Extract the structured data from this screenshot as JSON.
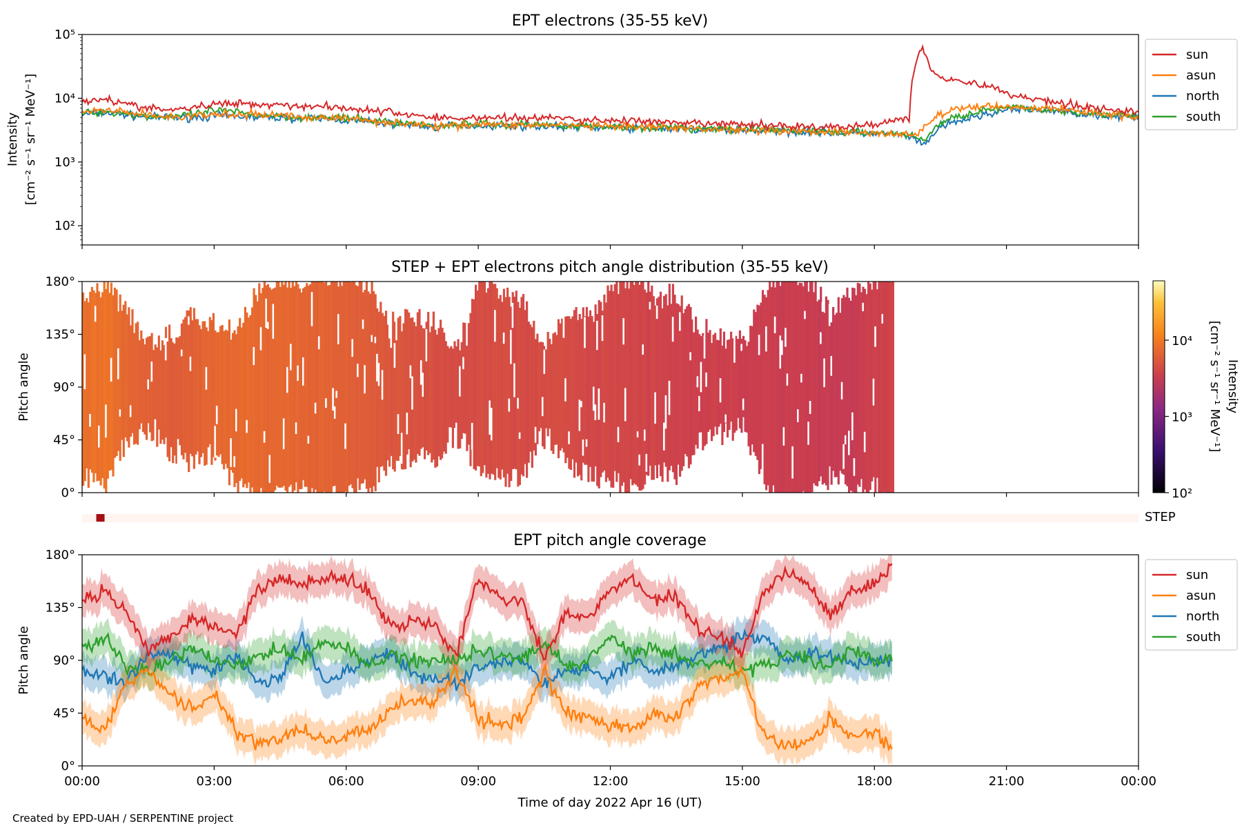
{
  "credit": "Created by EPD-UAH / SERPENTINE project",
  "colors": {
    "sun": "#d62728",
    "asun": "#ff7f0e",
    "north": "#1f77b4",
    "south": "#2ca02c"
  },
  "chart_data": [
    {
      "type": "line",
      "title": "EPT electrons (35-55 keV)",
      "ylabel_line1": "Intensity",
      "ylabel_line2": "[cm⁻² s⁻¹ sr⁻¹ MeV⁻¹]",
      "yscale": "log",
      "ylim": [
        50,
        100000
      ],
      "xlim_hours": [
        0,
        24
      ],
      "ytick_values": [
        100,
        1000,
        10000,
        100000
      ],
      "ytick_labels": [
        "10²",
        "10³",
        "10⁴",
        "10⁵"
      ],
      "legend_placement": "upper-right outside",
      "x_hours": [
        0.0,
        0.5,
        1.0,
        1.5,
        2.0,
        2.5,
        3.0,
        3.5,
        4.0,
        4.5,
        5.0,
        5.5,
        6.0,
        6.5,
        7.0,
        7.5,
        8.0,
        8.5,
        9.0,
        9.5,
        10.0,
        10.5,
        11.0,
        11.5,
        12.0,
        12.5,
        13.0,
        13.5,
        14.0,
        14.5,
        15.0,
        15.5,
        16.0,
        16.5,
        17.0,
        17.5,
        18.0,
        18.5,
        18.8,
        19.0,
        19.1,
        19.2,
        19.3,
        19.5,
        20.0,
        20.5,
        21.0,
        21.5,
        22.0,
        22.5,
        23.0,
        23.5,
        24.0
      ],
      "series": [
        {
          "name": "sun",
          "values": [
            9000,
            10000,
            8000,
            7000,
            6500,
            7000,
            8000,
            8500,
            8000,
            8000,
            7500,
            7500,
            7000,
            6500,
            6000,
            5500,
            5000,
            4800,
            5000,
            5000,
            4800,
            5000,
            4800,
            4500,
            4500,
            4500,
            4200,
            4000,
            4000,
            4000,
            3800,
            3800,
            3700,
            3600,
            3500,
            3500,
            4000,
            4500,
            5000,
            50000,
            60000,
            40000,
            28000,
            22000,
            18000,
            16000,
            12000,
            10000,
            9000,
            8000,
            7000,
            6500,
            6000
          ]
        },
        {
          "name": "asun",
          "values": [
            6000,
            6500,
            6000,
            5500,
            5000,
            5200,
            5500,
            5500,
            5500,
            5500,
            5000,
            5000,
            4800,
            4500,
            4200,
            4000,
            3500,
            3800,
            4000,
            3800,
            3800,
            3800,
            3800,
            3600,
            3600,
            3500,
            3500,
            3400,
            3300,
            3300,
            3200,
            3200,
            3100,
            3000,
            3000,
            2900,
            2800,
            2800,
            2600,
            2800,
            3500,
            4000,
            4500,
            5500,
            7000,
            7500,
            7500,
            7000,
            7000,
            6500,
            6000,
            5500,
            5000
          ]
        },
        {
          "name": "north",
          "values": [
            5500,
            6000,
            5500,
            5000,
            5000,
            5000,
            5200,
            5200,
            5000,
            5000,
            4800,
            4800,
            4500,
            4300,
            4000,
            3800,
            3500,
            3700,
            3800,
            3700,
            3700,
            3600,
            3600,
            3500,
            3500,
            3400,
            3400,
            3300,
            3200,
            3200,
            3100,
            3100,
            3000,
            3000,
            2900,
            2800,
            2800,
            2700,
            2500,
            2000,
            1800,
            2000,
            2600,
            3500,
            4500,
            5500,
            6500,
            6500,
            6500,
            6000,
            5500,
            5200,
            5000
          ]
        },
        {
          "name": "south",
          "values": [
            5800,
            6200,
            5800,
            5200,
            5200,
            5400,
            6500,
            6000,
            5500,
            5300,
            5000,
            5000,
            4800,
            4600,
            4200,
            4000,
            3700,
            3900,
            4000,
            3900,
            3900,
            3800,
            3800,
            3600,
            3600,
            3500,
            3500,
            3400,
            3300,
            3300,
            3200,
            3200,
            3100,
            3100,
            3000,
            2900,
            2900,
            2800,
            2600,
            2400,
            2200,
            2500,
            3000,
            4000,
            5500,
            6500,
            7000,
            7000,
            6500,
            6200,
            5800,
            5400,
            5000
          ]
        }
      ]
    },
    {
      "type": "heatmap",
      "title": "STEP + EPT electrons pitch angle distribution (35-55 keV)",
      "ylabel": "Pitch angle",
      "ylim_deg": [
        0,
        180
      ],
      "ytick_labels": [
        "0°",
        "45°",
        "90°",
        "135°",
        "180°"
      ],
      "data_end_hour": 18.4,
      "colorbar": {
        "label_line1": "Intensity",
        "label_line2": "[cm⁻² s⁻¹ sr⁻¹ MeV⁻¹]",
        "scale": "log",
        "range": [
          100,
          60000
        ],
        "tick_labels": [
          "10²",
          "10³",
          "10⁴"
        ]
      }
    },
    {
      "type": "bar",
      "label": "STEP",
      "marker_hour": 0.4
    },
    {
      "type": "line",
      "title": "EPT pitch angle coverage",
      "ylabel": "Pitch angle",
      "ylim_deg": [
        0,
        180
      ],
      "ytick_labels": [
        "0°",
        "45°",
        "90°",
        "135°",
        "180°"
      ],
      "xlabel": "Time of day 2022 Apr 16 (UT)",
      "xtick_labels": [
        "00:00",
        "03:00",
        "06:00",
        "09:00",
        "12:00",
        "15:00",
        "18:00",
        "21:00",
        "00:00"
      ],
      "data_end_hour": 18.4,
      "legend_placement": "upper-right outside",
      "x_hours": [
        0.0,
        0.5,
        1.0,
        1.5,
        2.0,
        2.5,
        3.0,
        3.5,
        4.0,
        4.5,
        5.0,
        5.5,
        6.0,
        6.5,
        7.0,
        7.5,
        8.0,
        8.5,
        9.0,
        9.5,
        10.0,
        10.5,
        11.0,
        11.5,
        12.0,
        12.5,
        13.0,
        13.5,
        14.0,
        14.5,
        15.0,
        15.5,
        16.0,
        16.5,
        17.0,
        17.5,
        18.0,
        18.4
      ],
      "series": [
        {
          "name": "sun",
          "values": [
            140,
            150,
            130,
            100,
            110,
            125,
            120,
            110,
            150,
            160,
            155,
            160,
            160,
            150,
            120,
            125,
            120,
            95,
            160,
            145,
            140,
            90,
            130,
            125,
            150,
            160,
            140,
            145,
            115,
            110,
            95,
            150,
            165,
            155,
            130,
            150,
            155,
            170
          ]
        },
        {
          "name": "asun",
          "values": [
            40,
            30,
            70,
            80,
            60,
            50,
            60,
            30,
            20,
            25,
            30,
            20,
            25,
            30,
            50,
            55,
            55,
            80,
            40,
            35,
            40,
            80,
            45,
            40,
            35,
            30,
            45,
            40,
            70,
            75,
            80,
            25,
            15,
            20,
            40,
            25,
            30,
            12
          ]
        },
        {
          "name": "north",
          "values": [
            80,
            75,
            70,
            95,
            95,
            85,
            80,
            95,
            70,
            75,
            110,
            70,
            80,
            90,
            95,
            80,
            75,
            70,
            85,
            90,
            90,
            70,
            80,
            85,
            75,
            90,
            80,
            85,
            95,
            100,
            110,
            110,
            90,
            95,
            95,
            85,
            90,
            90
          ]
        },
        {
          "name": "south",
          "values": [
            100,
            110,
            85,
            80,
            90,
            100,
            90,
            85,
            95,
            100,
            90,
            105,
            100,
            85,
            95,
            90,
            90,
            90,
            100,
            95,
            90,
            105,
            85,
            90,
            110,
            95,
            100,
            95,
            85,
            90,
            80,
            85,
            95,
            90,
            85,
            100,
            90,
            90
          ]
        }
      ]
    }
  ]
}
